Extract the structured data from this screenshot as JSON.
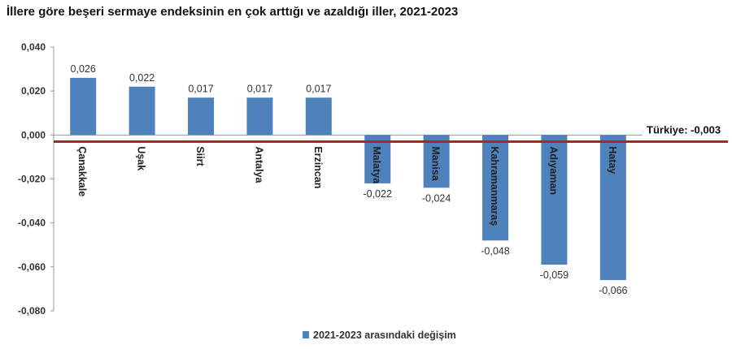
{
  "chart_data": {
    "type": "bar",
    "title": "İllere göre beşeri sermaye endeksinin en çok arttığı ve azaldığı iller, 2021-2023",
    "categories": [
      "Çanakkale",
      "Uşak",
      "Siirt",
      "Antalya",
      "Erzincan",
      "Malatya",
      "Manisa",
      "Kahramanmaraş",
      "Adıyaman",
      "Hatay"
    ],
    "series": [
      {
        "name": "2021-2023 arasındaki değişim",
        "values": [
          0.026,
          0.022,
          0.017,
          0.017,
          0.017,
          -0.022,
          -0.024,
          -0.048,
          -0.059,
          -0.066
        ],
        "labels": [
          "0,026",
          "0,022",
          "0,017",
          "0,017",
          "0,017",
          "-0,022",
          "-0,024",
          "-0,048",
          "-0,059",
          "-0,066"
        ]
      }
    ],
    "ylim": [
      -0.08,
      0.04
    ],
    "yticks": [
      0.04,
      0.02,
      0.0,
      -0.02,
      -0.04,
      -0.06,
      -0.08
    ],
    "ytick_labels": [
      "0,040",
      "0,020",
      "0,000",
      "-0,020",
      "-0,040",
      "-0,060",
      "-0,080"
    ],
    "reference_line": {
      "value": -0.003,
      "label": "Türkiye: -0,003",
      "color": "#b22222"
    },
    "bar_color": "#4f81bd",
    "legend_position": "bottom",
    "grid": false
  }
}
